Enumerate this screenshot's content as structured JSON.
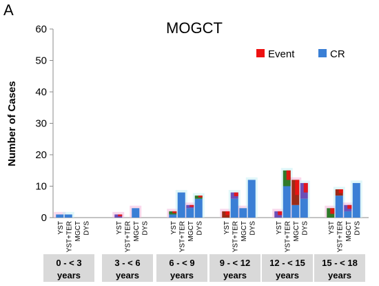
{
  "panel_label": "A",
  "chart_data": {
    "type": "bar",
    "title": "MOGCT",
    "ylabel": "Number of Cases",
    "xlabel": "",
    "ylim": [
      0,
      60
    ],
    "yticks": [
      0,
      10,
      20,
      30,
      40,
      50,
      60
    ],
    "grid": false,
    "legend_position": "top-right",
    "legend": [
      {
        "name": "Event",
        "color": "#ee1111"
      },
      {
        "name": "CR",
        "color": "#3a7fd5"
      }
    ],
    "histology_labels": [
      "YST",
      "YST+TER",
      "MGCT",
      "DYS"
    ],
    "age_groups": [
      {
        "label_line1": "0 - < 3",
        "label_line2": "years",
        "cr": [
          1,
          1,
          0,
          0
        ],
        "event": [
          0,
          0,
          0,
          0
        ]
      },
      {
        "label_line1": "3 - < 6",
        "label_line2": "years",
        "cr": [
          0,
          0,
          3,
          0
        ],
        "event": [
          1,
          0,
          0,
          0
        ]
      },
      {
        "label_line1": "6 - < 9",
        "label_line2": "years",
        "cr": [
          1,
          8,
          3,
          6
        ],
        "event": [
          1,
          0,
          1,
          1
        ]
      },
      {
        "label_line1": "9 - < 12",
        "label_line2": "years",
        "cr": [
          0,
          6,
          3,
          12
        ],
        "event": [
          2,
          2,
          0,
          0
        ]
      },
      {
        "label_line1": "12 - < 15",
        "label_line2": "years",
        "cr": [
          0,
          10,
          4,
          6
        ],
        "event": [
          2,
          5,
          8,
          5
        ]
      },
      {
        "label_line1": "15 - < 18",
        "label_line2": "years",
        "cr": [
          0,
          7,
          2,
          11
        ],
        "event": [
          3,
          2,
          2,
          0
        ]
      }
    ],
    "colors": {
      "cr": "#3a7fd5",
      "event": "#ee1111",
      "event_dark": "#9b2a16",
      "purple": "#6a4fb8",
      "green": "#2f7a2a",
      "halo_pink": "#f4b8dc",
      "halo_cyan": "#c8f1f4",
      "group_box": "#d9d9d9"
    }
  }
}
